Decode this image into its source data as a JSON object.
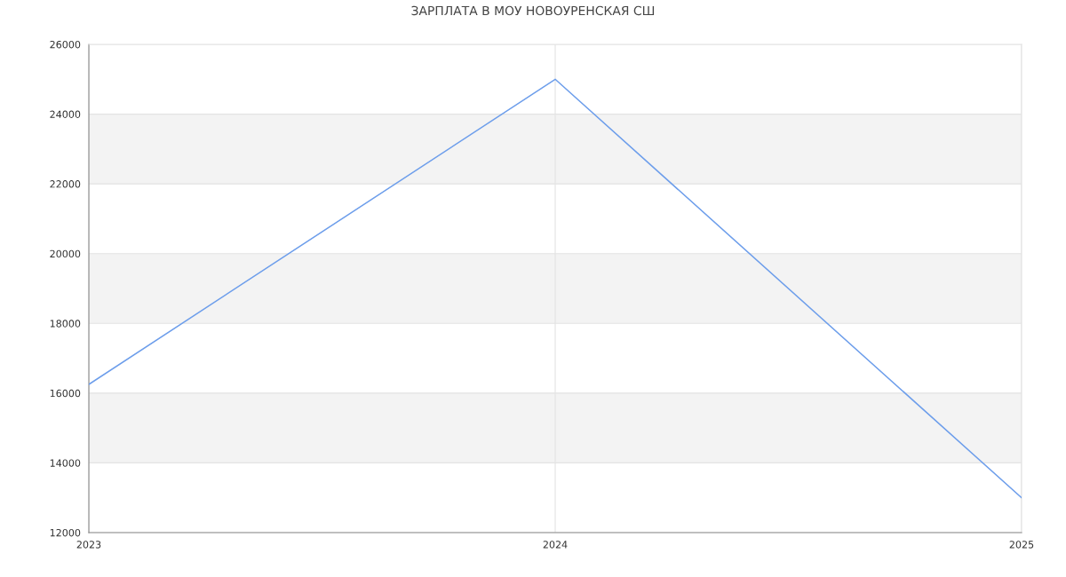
{
  "chart_data": {
    "type": "line",
    "title": "ЗАРПЛАТА В МОУ НОВОУРЕНСКАЯ СШ",
    "x": [
      2023,
      2024,
      2025
    ],
    "series": [
      {
        "color": "#6d9eeb",
        "values": [
          16250,
          25000,
          13000
        ]
      }
    ],
    "xlim": [
      2023,
      2025
    ],
    "xticks": [
      2023,
      2024,
      2025
    ],
    "ylim": [
      12000,
      26000
    ],
    "yticks": [
      12000,
      14000,
      16000,
      18000,
      20000,
      22000,
      24000,
      26000
    ],
    "bands": [
      {
        "axis": "y",
        "from": 14000,
        "to": 16000,
        "color": "#f3f3f3"
      },
      {
        "axis": "y",
        "from": 18000,
        "to": 20000,
        "color": "#f3f3f3"
      },
      {
        "axis": "y",
        "from": 22000,
        "to": 24000,
        "color": "#f3f3f3"
      }
    ],
    "grid": true,
    "marker": "none",
    "line_style": "solid"
  }
}
